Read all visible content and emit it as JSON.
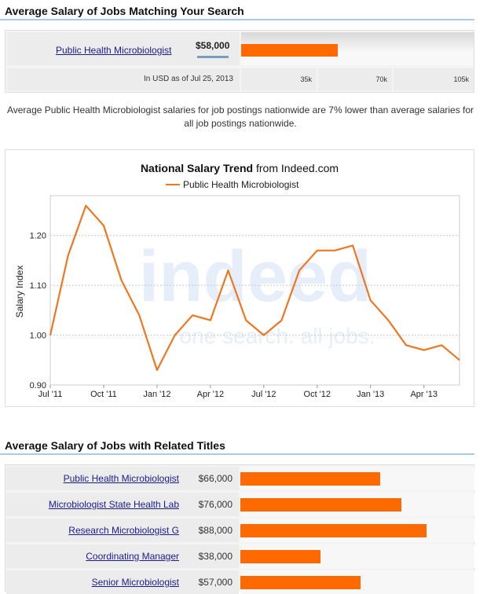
{
  "section1": {
    "title": "Average Salary of Jobs Matching Your Search",
    "job_link": "Public Health Microbiologist",
    "salary": "$58,000",
    "salary_value": 58000,
    "note": "In USD as of Jul 25, 2013",
    "ticks": [
      "35k",
      "70k",
      "105k"
    ],
    "bar_max": 140000
  },
  "comparison_text": "Average Public Health Microbiologist salaries for job postings nationwide are 7% lower than average salaries for all job postings nationwide.",
  "chart_data": {
    "type": "line",
    "title_bold": "National Salary Trend",
    "title_rest": " from Indeed.com",
    "ylabel": "Salary Index",
    "ylim": [
      0.9,
      1.28
    ],
    "yticks": [
      "0.90",
      "1.00",
      "1.10",
      "1.20"
    ],
    "xticks": [
      "Jul '11",
      "Oct '11",
      "Jan '12",
      "Apr '12",
      "Jul '12",
      "Oct '12",
      "Jan '13",
      "Apr '13"
    ],
    "series": [
      {
        "name": "Public Health Microbiologist",
        "color": "#ee7722",
        "x": [
          "2011-07",
          "2011-08",
          "2011-09",
          "2011-10",
          "2011-11",
          "2011-12",
          "2012-01",
          "2012-02",
          "2012-03",
          "2012-04",
          "2012-05",
          "2012-06",
          "2012-07",
          "2012-08",
          "2012-09",
          "2012-10",
          "2012-11",
          "2012-12",
          "2013-01",
          "2013-02",
          "2013-03",
          "2013-04",
          "2013-05",
          "2013-06"
        ],
        "values": [
          1.0,
          1.16,
          1.26,
          1.22,
          1.11,
          1.04,
          0.93,
          1.0,
          1.04,
          1.03,
          1.13,
          1.03,
          1.0,
          1.03,
          1.13,
          1.17,
          1.17,
          1.18,
          1.07,
          1.03,
          0.98,
          0.97,
          0.98,
          0.95
        ]
      }
    ],
    "watermark": "indeed",
    "watermark_tagline": "one search. all jobs.",
    "grid": true
  },
  "section2": {
    "title": "Average Salary of Jobs with Related Titles",
    "bar_max": 110000,
    "rows": [
      {
        "title": "Public Health Microbiologist",
        "salary": "$66,000",
        "value": 66000
      },
      {
        "title": "Microbiologist State Health Lab",
        "salary": "$76,000",
        "value": 76000
      },
      {
        "title": "Research Microbiologist G",
        "salary": "$88,000",
        "value": 88000
      },
      {
        "title": "Coordinating Manager",
        "salary": "$38,000",
        "value": 38000
      },
      {
        "title": "Senior Microbiologist",
        "salary": "$57,000",
        "value": 57000
      }
    ]
  }
}
